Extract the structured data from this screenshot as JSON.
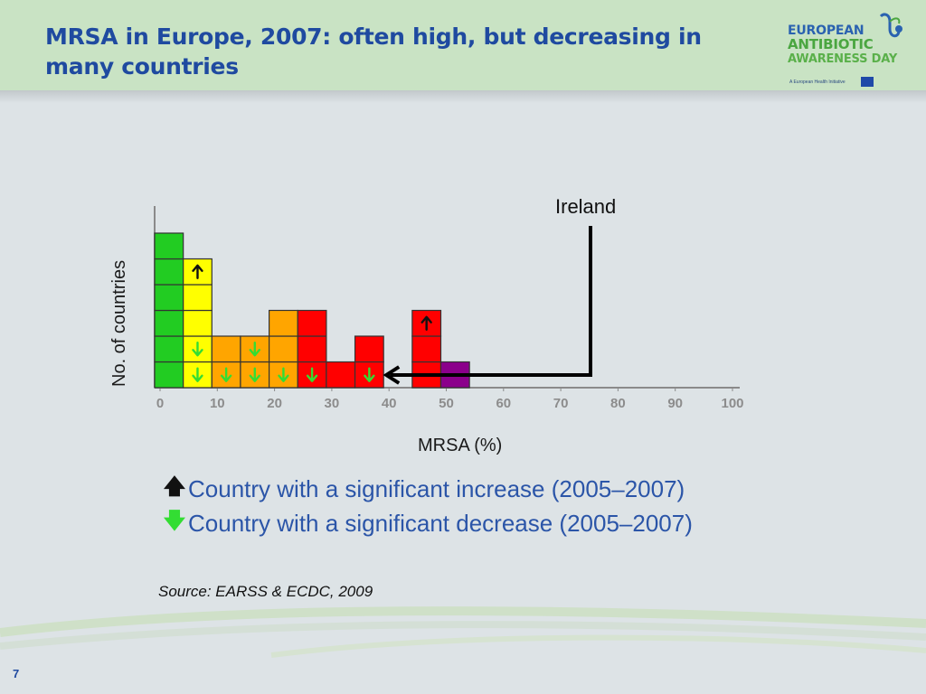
{
  "header": {
    "title": "MRSA in Europe, 2007: often high, but decreasing in many countries",
    "logo": {
      "line1": "EUROPEAN",
      "line2": "ANTIBIOTIC",
      "line3": "AWARENESS DAY",
      "tagline": "A European Health Initiative"
    }
  },
  "colors": {
    "header_bg": "#c9e3c4",
    "title": "#1f4aa0",
    "green": "#22cc22",
    "yellow": "#ffff00",
    "orange": "#ffa500",
    "red": "#ff0000",
    "purple": "#8b008b",
    "decrease_arrow": "#33dd33",
    "increase_arrow": "#111111",
    "legend_text": "#2b55a8"
  },
  "chart_data": {
    "type": "bar",
    "subtype": "stacked-unit histogram (one box per country)",
    "xlabel": "MRSA (%)",
    "ylabel": "No. of countries",
    "xlim": [
      0,
      100
    ],
    "x_ticks": [
      "0",
      "10",
      "20",
      "30",
      "40",
      "50",
      "60",
      "70",
      "80",
      "90",
      "100"
    ],
    "bin_width": 5,
    "bins": [
      {
        "x_start": 0,
        "color": "green",
        "marks": [
          "none",
          "none",
          "none",
          "none",
          "none",
          "none"
        ]
      },
      {
        "x_start": 5,
        "color": "yellow",
        "marks": [
          "decrease",
          "decrease",
          "none",
          "none",
          "increase"
        ]
      },
      {
        "x_start": 10,
        "color": "orange",
        "marks": [
          "decrease",
          "none"
        ]
      },
      {
        "x_start": 15,
        "color": "orange",
        "marks": [
          "decrease",
          "decrease"
        ]
      },
      {
        "x_start": 20,
        "color": "orange",
        "marks": [
          "decrease",
          "none",
          "none"
        ]
      },
      {
        "x_start": 25,
        "color": "red",
        "marks": [
          "decrease",
          "none",
          "none"
        ]
      },
      {
        "x_start": 30,
        "color": "red",
        "marks": [
          "none"
        ]
      },
      {
        "x_start": 35,
        "color": "red",
        "marks": [
          "decrease",
          "none"
        ]
      },
      {
        "x_start": 45,
        "color": "red",
        "marks": [
          "none",
          "none",
          "increase"
        ]
      },
      {
        "x_start": 50,
        "color": "purple",
        "marks": [
          "none"
        ]
      }
    ],
    "counts": [
      6,
      5,
      2,
      2,
      3,
      3,
      1,
      2,
      0,
      3,
      1
    ],
    "annotation": {
      "label": "Ireland",
      "points_to_bin_x_start": 35
    },
    "grid": false
  },
  "legend": {
    "increase_symbol": "🡅",
    "increase_text": "Country with a significant increase (2005–2007)",
    "decrease_symbol": "🡇",
    "decrease_text": "Country with a significant decrease (2005–2007)"
  },
  "source": "Source: EARSS & ECDC, 2009",
  "page_number": "7"
}
